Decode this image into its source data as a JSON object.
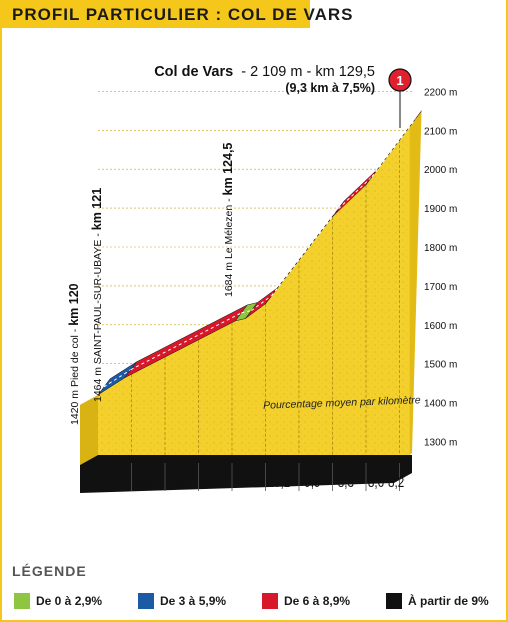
{
  "header": {
    "title": "PROFIL PARTICULIER : COL DE VARS"
  },
  "summit": {
    "name": "Col de Vars",
    "details": "- 2 109 m - km 129,5",
    "sub": "(9,3 km à 7,5%)",
    "marker": "1"
  },
  "landmarks": [
    {
      "label": "1420 m Pied de col - ",
      "km": "km 120"
    },
    {
      "label": "1464 m SAINT-PAUL-SUR-UBAYE - ",
      "km": "km 121"
    },
    {
      "label": "1684 m Le Mélezen - ",
      "km": "km 124,5"
    }
  ],
  "avg_label": "Pourcentage moyen par kilomètre",
  "legend": {
    "title": "LÉGENDE",
    "items": [
      {
        "label": "De 0 à 2,9%",
        "color": "#8dc63f"
      },
      {
        "label": "De 3 à 5,9%",
        "color": "#1c5aa6"
      },
      {
        "label": "De 6 à 8,9%",
        "color": "#d7182a"
      },
      {
        "label": "À partir de 9%",
        "color": "#111111"
      }
    ]
  },
  "colors": {
    "accent": "#f6c71b",
    "terrain": "#f3d02c"
  },
  "chart_data": {
    "type": "area",
    "y_ticks": [
      "1300 m",
      "1400 m",
      "1500 m",
      "1600 m",
      "1700 m",
      "1800 m",
      "1900 m",
      "2000 m",
      "2100 m",
      "2200 m"
    ],
    "ylim": [
      1300,
      2200
    ],
    "x_ticks": [
      "1",
      "2",
      "3",
      "4",
      "5",
      "6",
      "7",
      "8",
      "9"
    ],
    "points": [
      {
        "km": 0,
        "alt": 1420
      },
      {
        "km": 0.8,
        "alt": 1464
      },
      {
        "km": 4.1,
        "alt": 1610
      },
      {
        "km": 4.4,
        "alt": 1616
      },
      {
        "km": 5.0,
        "alt": 1654
      },
      {
        "km": 7.0,
        "alt": 1878
      },
      {
        "km": 8.0,
        "alt": 1960
      },
      {
        "km": 9.3,
        "alt": 2109
      }
    ],
    "segments": [
      {
        "from": 0,
        "to": 1,
        "grade": "3-5.9"
      },
      {
        "from": 1,
        "to": 2,
        "grade": "6-8.9"
      },
      {
        "from": 2,
        "to": 3,
        "grade": "0-2.9"
      },
      {
        "from": 3,
        "to": 4,
        "grade": "6-8.9"
      },
      {
        "from": 4,
        "to": 5,
        "grade": "9+"
      },
      {
        "from": 5,
        "to": 6,
        "grade": "6-8.9"
      },
      {
        "from": 6,
        "to": 7,
        "grade": "6-8.9"
      }
    ],
    "percentages": [
      "4,4",
      "6,5",
      "7,4",
      "6,5",
      "0",
      "8",
      "10,2",
      "9,9",
      "8,3",
      "8,6",
      "8,2"
    ]
  }
}
